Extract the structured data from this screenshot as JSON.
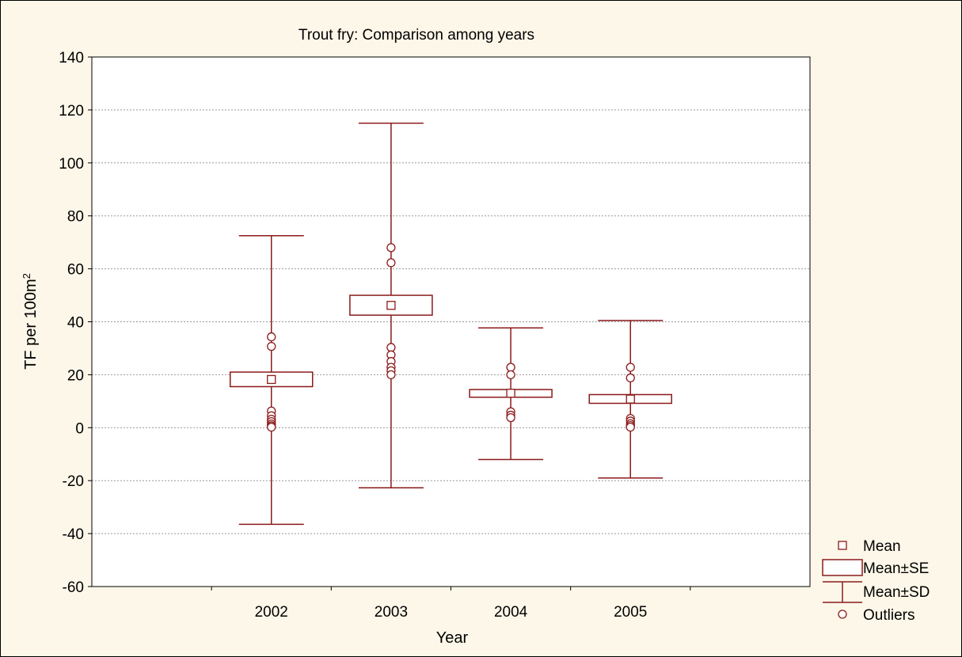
{
  "chart_data": {
    "type": "box",
    "title": "Trout fry: Comparison among years",
    "xlabel": "Year",
    "ylabel_main": "TF per 100m",
    "ylabel_sup": "2",
    "ylim": [
      -60,
      140
    ],
    "yticks": [
      -60,
      -40,
      -20,
      0,
      20,
      40,
      60,
      80,
      100,
      120,
      140
    ],
    "grid": true,
    "legend_position": "bottom-right",
    "categories": [
      "2002",
      "2003",
      "2004",
      "2005"
    ],
    "groups": [
      {
        "year": "2002",
        "mean": 18.2,
        "se_low": 15.5,
        "se_high": 21.0,
        "sd_low": -36.5,
        "sd_high": 72.5,
        "outliers": [
          34.3,
          30.7,
          6.3,
          4.5,
          3.2,
          2.3,
          1.4,
          0.7,
          0.2
        ]
      },
      {
        "year": "2003",
        "mean": 46.2,
        "se_low": 42.5,
        "se_high": 50.0,
        "sd_low": -22.7,
        "sd_high": 115.0,
        "outliers": [
          68.0,
          62.3,
          30.3,
          27.5,
          25.0,
          22.8,
          21.5,
          20.0
        ]
      },
      {
        "year": "2004",
        "mean": 13.0,
        "se_low": 11.5,
        "se_high": 14.4,
        "sd_low": -12.0,
        "sd_high": 37.7,
        "outliers": [
          22.8,
          20.0,
          6.0,
          4.7,
          3.8
        ]
      },
      {
        "year": "2005",
        "mean": 10.8,
        "se_low": 9.2,
        "se_high": 12.5,
        "sd_low": -19.0,
        "sd_high": 40.5,
        "outliers": [
          22.8,
          18.8,
          3.5,
          2.5,
          1.5,
          0.8,
          0.2
        ]
      }
    ],
    "legend": [
      {
        "key": "mean",
        "label": "Mean"
      },
      {
        "key": "se",
        "label": "Mean±SE"
      },
      {
        "key": "sd",
        "label": "Mean±SD"
      },
      {
        "key": "outliers",
        "label": "Outliers"
      }
    ],
    "colors": {
      "series": "#8b1a1a",
      "background": "#fdf7e9",
      "plot_background": "#ffffff",
      "grid": "#999999"
    }
  }
}
